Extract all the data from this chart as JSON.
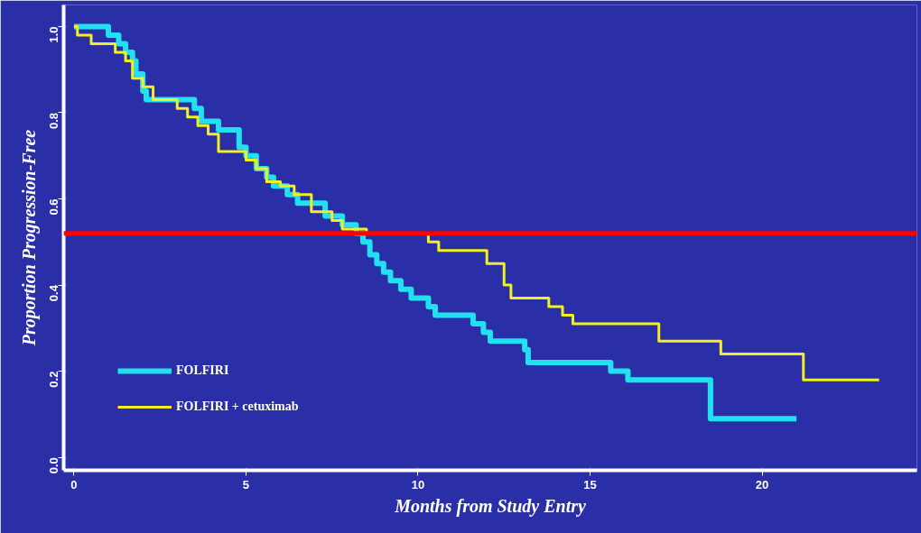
{
  "chart_data": {
    "type": "step",
    "xlabel": "Months from Study Entry",
    "ylabel": "Proportion Progression-Free",
    "xlim": [
      -0.3,
      24.5
    ],
    "ylim": [
      -0.03,
      1.05
    ],
    "xticks": [
      0,
      5,
      10,
      15,
      20
    ],
    "yticks": [
      {
        "value": 0,
        "label": "0.0"
      },
      0.2,
      0.4,
      0.6,
      0.8,
      {
        "value": 1,
        "label": "1.0"
      }
    ],
    "grid": false,
    "legend": "bottom left",
    "line_style": "solid",
    "marker": "none",
    "series": [
      {
        "name": "FOLFIRI",
        "color": "#22e0f0",
        "x": [
          0,
          1.0,
          1.3,
          1.5,
          1.7,
          1.8,
          2.0,
          2.1,
          3.5,
          3.7,
          4.2,
          4.8,
          5.0,
          5.3,
          5.6,
          5.8,
          6.2,
          6.5,
          7.3,
          7.8,
          8.2,
          8.4,
          8.6,
          8.8,
          9.0,
          9.2,
          9.5,
          9.8,
          10.3,
          10.5,
          11.6,
          11.9,
          12.1,
          13.1,
          13.2,
          15.6,
          16.1,
          18.5,
          21.0
        ],
        "values": [
          1.0,
          0.98,
          0.96,
          0.94,
          0.92,
          0.89,
          0.85,
          0.83,
          0.81,
          0.78,
          0.76,
          0.72,
          0.7,
          0.67,
          0.65,
          0.63,
          0.61,
          0.59,
          0.56,
          0.54,
          0.52,
          0.5,
          0.47,
          0.45,
          0.43,
          0.41,
          0.39,
          0.37,
          0.35,
          0.33,
          0.31,
          0.29,
          0.27,
          0.25,
          0.22,
          0.2,
          0.18,
          0.09,
          0.09
        ]
      },
      {
        "name": "FOLFIRI + cetuximab",
        "color": "#f4f020",
        "x": [
          0,
          0.1,
          0.5,
          1.2,
          1.5,
          1.7,
          2.0,
          2.3,
          3.0,
          3.3,
          3.6,
          3.9,
          4.2,
          5.0,
          5.3,
          5.6,
          6.0,
          6.4,
          6.9,
          7.5,
          7.8,
          8.5,
          10.3,
          10.6,
          12.0,
          12.5,
          12.7,
          13.8,
          14.2,
          14.5,
          17.0,
          18.8,
          21.2,
          23.4
        ],
        "values": [
          1.0,
          0.98,
          0.96,
          0.94,
          0.92,
          0.88,
          0.86,
          0.83,
          0.81,
          0.79,
          0.77,
          0.75,
          0.71,
          0.69,
          0.67,
          0.64,
          0.63,
          0.61,
          0.57,
          0.55,
          0.53,
          0.52,
          0.5,
          0.48,
          0.45,
          0.4,
          0.37,
          0.35,
          0.33,
          0.31,
          0.27,
          0.24,
          0.18,
          0.18
        ]
      }
    ],
    "ref_lines": [
      {
        "axis": "y",
        "value": 0.52,
        "color": "#ff0000"
      }
    ]
  }
}
